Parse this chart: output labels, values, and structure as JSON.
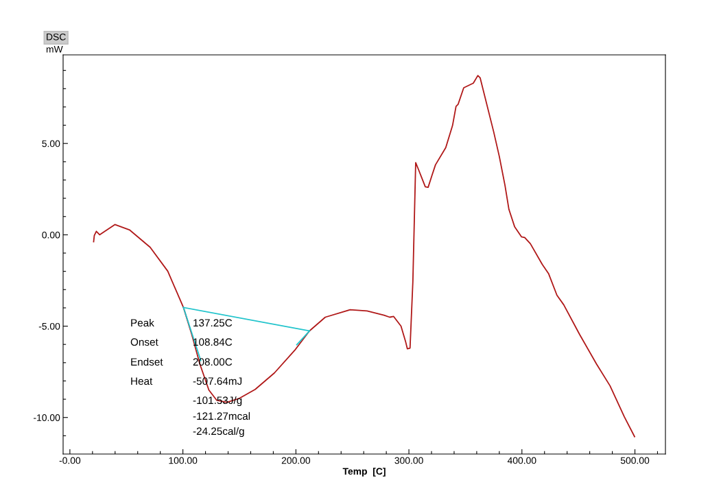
{
  "chart_data": {
    "type": "line",
    "xlabel": "Temp  [C]",
    "ylabel": "DSC\nmW",
    "xlim": [
      -6,
      527
    ],
    "ylim": [
      -12,
      9.85
    ],
    "xticks": [
      {
        "value": 0,
        "label": "-0.00"
      },
      {
        "value": 20,
        "label": null
      },
      {
        "value": 40,
        "label": null
      },
      {
        "value": 60,
        "label": null
      },
      {
        "value": 80,
        "label": null
      },
      {
        "value": 100,
        "label": "100.00"
      },
      {
        "value": 120,
        "label": null
      },
      {
        "value": 140,
        "label": null
      },
      {
        "value": 160,
        "label": null
      },
      {
        "value": 180,
        "label": null
      },
      {
        "value": 200,
        "label": "200.00"
      },
      {
        "value": 220,
        "label": null
      },
      {
        "value": 240,
        "label": null
      },
      {
        "value": 260,
        "label": null
      },
      {
        "value": 280,
        "label": null
      },
      {
        "value": 300,
        "label": "300.00"
      },
      {
        "value": 320,
        "label": null
      },
      {
        "value": 340,
        "label": null
      },
      {
        "value": 360,
        "label": null
      },
      {
        "value": 380,
        "label": null
      },
      {
        "value": 400,
        "label": "400.00"
      },
      {
        "value": 420,
        "label": null
      },
      {
        "value": 440,
        "label": null
      },
      {
        "value": 460,
        "label": null
      },
      {
        "value": 480,
        "label": null
      },
      {
        "value": 500,
        "label": "500.00"
      },
      {
        "value": 520,
        "label": null
      }
    ],
    "yticks": [
      {
        "value": -11,
        "label": null
      },
      {
        "value": -10,
        "label": "-10.00"
      },
      {
        "value": -9,
        "label": null
      },
      {
        "value": -8,
        "label": null
      },
      {
        "value": -7,
        "label": null
      },
      {
        "value": -6,
        "label": null
      },
      {
        "value": -5,
        "label": "-5.00"
      },
      {
        "value": -4,
        "label": null
      },
      {
        "value": -3,
        "label": null
      },
      {
        "value": -2,
        "label": null
      },
      {
        "value": -1,
        "label": null
      },
      {
        "value": 0,
        "label": "0.00"
      },
      {
        "value": 1,
        "label": null
      },
      {
        "value": 2,
        "label": null
      },
      {
        "value": 3,
        "label": null
      },
      {
        "value": 4,
        "label": null
      },
      {
        "value": 5,
        "label": "5.00"
      },
      {
        "value": 6,
        "label": null
      },
      {
        "value": 7,
        "label": null
      },
      {
        "value": 8,
        "label": null
      },
      {
        "value": 9,
        "label": null
      }
    ],
    "grid": false,
    "legend": false,
    "marker": "none",
    "line_style": "solid",
    "series": [
      {
        "color": "#b01818",
        "x": [
          21,
          21.6,
          23.4,
          26.4,
          30,
          39.8,
          53,
          71,
          86.6,
          100.5,
          107.8,
          115,
          123,
          130,
          139,
          150,
          164,
          181,
          199,
          212,
          226,
          248,
          263,
          278,
          283,
          286.5,
          293,
          297,
          298.6,
          301,
          303.5,
          306,
          308.5,
          314.5,
          317,
          320.5,
          323.5,
          332.6,
          338.6,
          341.7,
          343.5,
          348.5,
          357,
          361,
          363,
          375,
          380,
          385,
          388.5,
          393.5,
          399.6,
          402.5,
          407.5,
          418,
          423.7,
          431,
          437,
          451,
          466,
          478,
          490.6,
          499.7
        ],
        "values": [
          -0.38,
          -0.04,
          0.19,
          0,
          0.15,
          0.56,
          0.26,
          -0.68,
          -1.99,
          -3.98,
          -5.45,
          -7.07,
          -8.5,
          -9.06,
          -9.17,
          -8.95,
          -8.46,
          -7.56,
          -6.32,
          -5.26,
          -4.51,
          -4.1,
          -4.17,
          -4.4,
          -4.51,
          -4.47,
          -5.0,
          -5.83,
          -6.24,
          -6.2,
          -2.56,
          3.95,
          3.57,
          2.63,
          2.6,
          3.27,
          3.83,
          4.77,
          5.98,
          7.03,
          7.14,
          8.05,
          8.3,
          8.72,
          8.6,
          5.64,
          4.29,
          2.71,
          1.39,
          0.45,
          -0.11,
          -0.15,
          -0.49,
          -1.62,
          -2.14,
          -3.31,
          -3.83,
          -5.45,
          -7.07,
          -8.27,
          -9.96,
          -11.05
        ]
      },
      {
        "color": "#22c4cc",
        "x": [
          100.5,
          212
        ],
        "values": [
          -3.98,
          -5.26
        ]
      },
      {
        "color": "#22c4cc",
        "x": [
          100.5,
          115.8
        ],
        "values": [
          -3.98,
          -6.88
        ]
      },
      {
        "color": "#22c4cc",
        "x": [
          200.8,
          212
        ],
        "values": [
          -6.02,
          -5.26
        ]
      }
    ],
    "annotations": [
      "Peak",
      "137.25C",
      "Onset",
      "108.84C",
      "Endset",
      "208.00C",
      "Heat",
      "-507.64mJ",
      "-101.53J/g",
      "-121.27mcal",
      "-24.25cal/g"
    ]
  }
}
